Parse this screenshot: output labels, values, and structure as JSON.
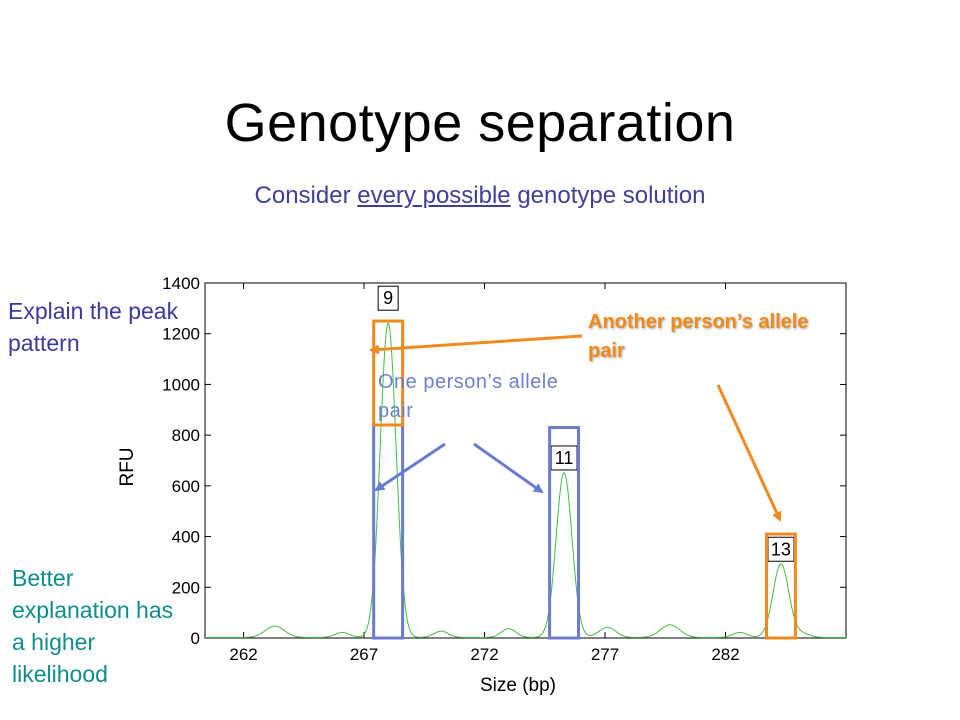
{
  "slide": {
    "title": "Genotype separation",
    "subtitle_pre": "Consider ",
    "subtitle_ul": "every possible",
    "subtitle_post": " genotype solution",
    "explain": "Explain the peak pattern",
    "better": "Better explanation has a higher likelihood",
    "one_person": "One person’s allele pair",
    "another_person": "Another person’s allele pair"
  },
  "colors": {
    "trace": "#3fbf3f",
    "person_one": "#6a7ccf",
    "person_two": "#f08a1f",
    "arrow_blue": "#6a7ccf",
    "arrow_orange": "#f08a1f"
  },
  "chart_data": {
    "type": "line",
    "xlabel": "Size (bp)",
    "ylabel": "RFU",
    "xlim": [
      260.4,
      287
    ],
    "ylim": [
      0,
      1400
    ],
    "x_ticks": [
      262,
      267,
      272,
      277,
      282
    ],
    "y_ticks": [
      0,
      200,
      400,
      600,
      800,
      1000,
      1200,
      1400
    ],
    "grid": false,
    "series": [
      {
        "peaks": [
          {
            "x": 268.0,
            "height": 1240,
            "width": 0.33
          },
          {
            "x": 275.3,
            "height": 650,
            "width": 0.33
          },
          {
            "x": 284.3,
            "height": 290,
            "width": 0.33
          },
          {
            "x": 263.3,
            "height": 45,
            "width": 0.4
          },
          {
            "x": 266.1,
            "height": 20,
            "width": 0.3
          },
          {
            "x": 270.2,
            "height": 25,
            "width": 0.3
          },
          {
            "x": 273.0,
            "height": 35,
            "width": 0.3
          },
          {
            "x": 277.1,
            "height": 40,
            "width": 0.35
          },
          {
            "x": 279.7,
            "height": 50,
            "width": 0.4
          },
          {
            "x": 282.6,
            "height": 20,
            "width": 0.3
          },
          {
            "x": 285.2,
            "height": 15,
            "width": 0.3
          }
        ]
      }
    ],
    "allele_labels": [
      {
        "label": "9",
        "x": 268.0,
        "y": 1340
      },
      {
        "label": "11",
        "x": 275.3,
        "y": 710
      },
      {
        "label": "13",
        "x": 284.3,
        "y": 350
      }
    ],
    "genotype_boxes": [
      {
        "person": "one",
        "x_min": 267.4,
        "x_max": 268.6,
        "y_max": 840
      },
      {
        "person": "one",
        "x_min": 274.7,
        "x_max": 275.9,
        "y_max": 830
      },
      {
        "person": "two",
        "x_min": 267.4,
        "x_max": 268.6,
        "y_min": 840,
        "y_max": 1250
      },
      {
        "person": "two",
        "x_min": 283.7,
        "x_max": 284.9,
        "y_max": 410
      }
    ]
  }
}
